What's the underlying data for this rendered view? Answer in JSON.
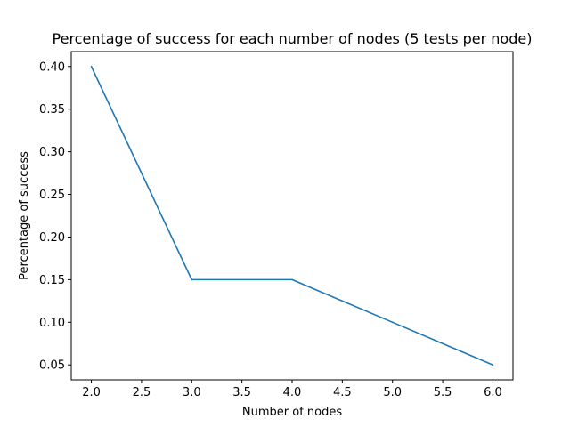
{
  "chart_data": {
    "type": "line",
    "title": "Percentage of success for each number of nodes (5 tests per node)",
    "xlabel": "Number of nodes",
    "ylabel": "Percentage of success",
    "x": [
      2,
      3,
      4,
      5,
      6
    ],
    "series": [
      {
        "values": [
          0.4,
          0.15,
          0.15,
          0.1,
          0.05
        ],
        "color": "#1f77b4"
      }
    ],
    "xlim": [
      1.8,
      6.2
    ],
    "ylim": [
      0.0325,
      0.4175
    ],
    "xticks": [
      2.0,
      2.5,
      3.0,
      3.5,
      4.0,
      4.5,
      5.0,
      5.5,
      6.0
    ],
    "xtick_labels": [
      "2.0",
      "2.5",
      "3.0",
      "3.5",
      "4.0",
      "4.5",
      "5.0",
      "5.5",
      "6.0"
    ],
    "yticks": [
      0.05,
      0.1,
      0.15,
      0.2,
      0.25,
      0.3,
      0.35,
      0.4
    ],
    "ytick_labels": [
      "0.05",
      "0.10",
      "0.15",
      "0.20",
      "0.25",
      "0.30",
      "0.35",
      "0.40"
    ],
    "grid": false,
    "legend": false
  }
}
